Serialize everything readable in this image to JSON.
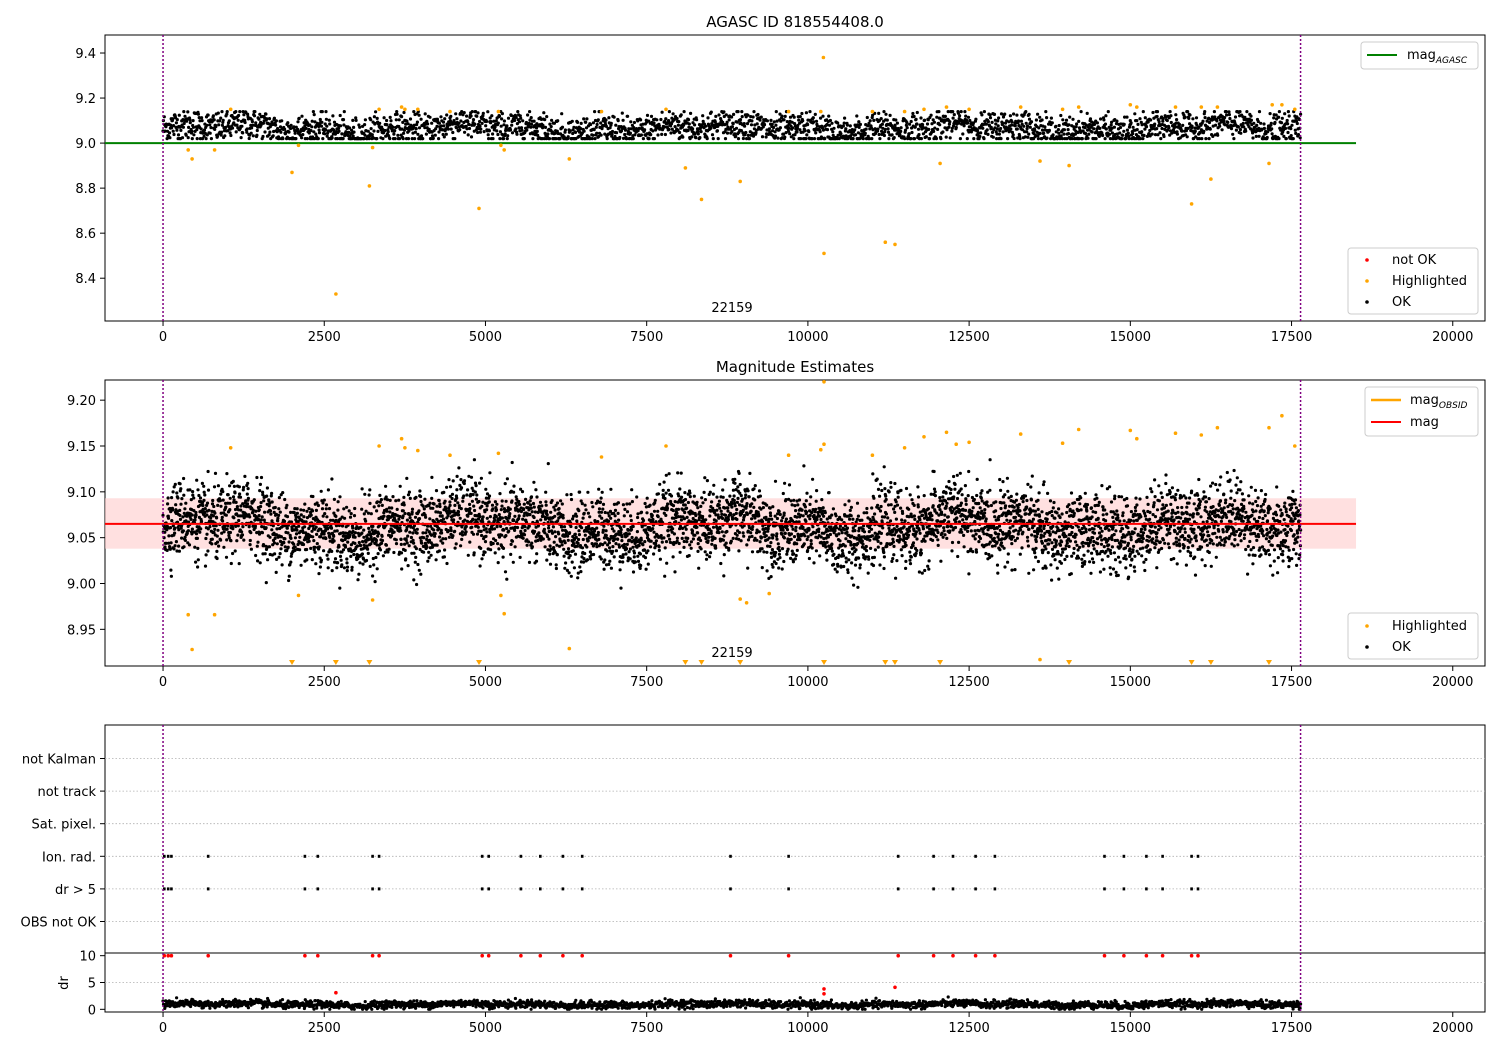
{
  "figure": {
    "colors": {
      "ok": "#000000",
      "highlighted": "#ffa500",
      "not_ok": "#ff0000",
      "agasc": "#008000",
      "mag": "#ff0000",
      "obsid": "#ffa500",
      "band": "#ffcccc",
      "vline": "#800080",
      "grid": "#b0b0b0"
    }
  },
  "chart_data": [
    {
      "type": "scatter",
      "title": "AGASC ID 818554408.0",
      "xlim": [
        -900,
        20500
      ],
      "ylim": [
        8.21,
        9.48
      ],
      "xticks": [
        0,
        2500,
        5000,
        7500,
        10000,
        12500,
        15000,
        17500,
        20000
      ],
      "xtick_labels": [
        "0",
        "2500",
        "5000",
        "7500",
        "10000",
        "12500",
        "15000",
        "17500",
        "20000"
      ],
      "yticks": [
        8.4,
        8.6,
        8.8,
        9.0,
        9.2,
        9.4
      ],
      "ytick_labels": [
        "8.4",
        "8.6",
        "8.8",
        "9.0",
        "9.2",
        "9.4"
      ],
      "vlines": [
        0,
        17640
      ],
      "hline": {
        "y": 9.0,
        "x_range": [
          -900,
          18500
        ]
      },
      "obsid_label": {
        "text": "22159",
        "x": 8800
      },
      "ok_series": {
        "x_range": [
          0,
          17640
        ],
        "center": 9.065,
        "spread": 0.045,
        "count": 2800
      },
      "highlighted_points": [
        [
          390,
          8.97
        ],
        [
          450,
          8.93
        ],
        [
          800,
          8.97
        ],
        [
          2000,
          8.87
        ],
        [
          2100,
          8.99
        ],
        [
          2680,
          8.33
        ],
        [
          3200,
          8.81
        ],
        [
          3250,
          8.98
        ],
        [
          4900,
          8.71
        ],
        [
          5240,
          8.99
        ],
        [
          5290,
          8.97
        ],
        [
          6300,
          8.93
        ],
        [
          8100,
          8.89
        ],
        [
          8350,
          8.75
        ],
        [
          8950,
          8.83
        ],
        [
          10250,
          8.51
        ],
        [
          10240,
          9.38
        ],
        [
          11200,
          8.56
        ],
        [
          11350,
          8.55
        ],
        [
          12050,
          8.91
        ],
        [
          13600,
          8.92
        ],
        [
          14050,
          8.9
        ],
        [
          15950,
          8.73
        ],
        [
          16250,
          8.84
        ],
        [
          17150,
          8.91
        ],
        [
          1050,
          9.15
        ],
        [
          3350,
          9.15
        ],
        [
          3700,
          9.16
        ],
        [
          3750,
          9.15
        ],
        [
          3950,
          9.15
        ],
        [
          4450,
          9.14
        ],
        [
          5200,
          9.14
        ],
        [
          6800,
          9.14
        ],
        [
          7800,
          9.15
        ],
        [
          9700,
          9.14
        ],
        [
          10200,
          9.14
        ],
        [
          11000,
          9.14
        ],
        [
          11500,
          9.14
        ],
        [
          11800,
          9.15
        ],
        [
          12150,
          9.16
        ],
        [
          12500,
          9.15
        ],
        [
          13300,
          9.16
        ],
        [
          13950,
          9.15
        ],
        [
          14200,
          9.16
        ],
        [
          15000,
          9.17
        ],
        [
          15100,
          9.16
        ],
        [
          15700,
          9.16
        ],
        [
          16100,
          9.16
        ],
        [
          16350,
          9.16
        ],
        [
          17200,
          9.17
        ],
        [
          17350,
          9.17
        ],
        [
          17550,
          9.15
        ]
      ],
      "not_ok_points": [],
      "legend_upper": [
        {
          "label": "mag",
          "sub": "AGASC"
        }
      ],
      "legend_lower": [
        {
          "label": "not OK"
        },
        {
          "label": "Highlighted"
        },
        {
          "label": "OK"
        }
      ],
      "legend_upper_position": "upper right",
      "legend_lower_position": "lower right"
    },
    {
      "type": "scatter",
      "title": "Magnitude Estimates",
      "xlim": [
        -900,
        20500
      ],
      "ylim": [
        8.91,
        9.222
      ],
      "xticks": [
        0,
        2500,
        5000,
        7500,
        10000,
        12500,
        15000,
        17500,
        20000
      ],
      "xtick_labels": [
        "0",
        "2500",
        "5000",
        "7500",
        "10000",
        "12500",
        "15000",
        "17500",
        "20000"
      ],
      "yticks": [
        8.95,
        9.0,
        9.05,
        9.1,
        9.15,
        9.2
      ],
      "ytick_labels": [
        "8.95",
        "9.00",
        "9.05",
        "9.10",
        "9.15",
        "9.20"
      ],
      "vlines": [
        0,
        17640
      ],
      "mag_line": {
        "y": 9.065,
        "x_range": [
          -900,
          18500
        ]
      },
      "band": {
        "y_low": 9.038,
        "y_high": 9.093,
        "x_range": [
          -900,
          18500
        ]
      },
      "obsid_label": {
        "text": "22159",
        "x": 8800
      },
      "ok_series": {
        "x_range": [
          0,
          17640
        ],
        "center": 9.062,
        "spread": 0.025,
        "count": 5200
      },
      "highlighted_points": [
        [
          390,
          8.966
        ],
        [
          450,
          8.928
        ],
        [
          800,
          8.966
        ],
        [
          2100,
          8.987
        ],
        [
          3250,
          8.982
        ],
        [
          5240,
          8.987
        ],
        [
          5290,
          8.967
        ],
        [
          6300,
          8.929
        ],
        [
          8950,
          8.983
        ],
        [
          9050,
          8.979
        ],
        [
          9400,
          8.989
        ],
        [
          13600,
          8.917
        ],
        [
          1050,
          9.148
        ],
        [
          3350,
          9.15
        ],
        [
          3700,
          9.158
        ],
        [
          3750,
          9.148
        ],
        [
          3950,
          9.145
        ],
        [
          4450,
          9.14
        ],
        [
          5200,
          9.142
        ],
        [
          6800,
          9.138
        ],
        [
          7800,
          9.15
        ],
        [
          9700,
          9.14
        ],
        [
          10200,
          9.146
        ],
        [
          10250,
          9.152
        ],
        [
          11000,
          9.14
        ],
        [
          11500,
          9.148
        ],
        [
          11800,
          9.16
        ],
        [
          12150,
          9.165
        ],
        [
          12300,
          9.152
        ],
        [
          12500,
          9.154
        ],
        [
          13300,
          9.163
        ],
        [
          13950,
          9.153
        ],
        [
          14200,
          9.168
        ],
        [
          15000,
          9.167
        ],
        [
          15100,
          9.158
        ],
        [
          15700,
          9.164
        ],
        [
          16100,
          9.162
        ],
        [
          16350,
          9.17
        ],
        [
          17150,
          9.17
        ],
        [
          17350,
          9.183
        ],
        [
          17550,
          9.15
        ],
        [
          10250,
          9.22
        ]
      ],
      "lower_markers_x": [
        2000,
        2680,
        3200,
        4900,
        8100,
        8350,
        8950,
        10250,
        11200,
        11350,
        12050,
        14050,
        15950,
        16250,
        17150
      ],
      "legend_upper": [
        {
          "label": "mag",
          "sub": "OBSID"
        },
        {
          "label": "mag"
        }
      ],
      "legend_lower": [
        {
          "label": "Highlighted"
        },
        {
          "label": "OK"
        }
      ],
      "legend_upper_position": "upper right",
      "legend_lower_position": "lower right"
    },
    {
      "type": "scatter",
      "title": "",
      "xlim": [
        -900,
        20500
      ],
      "xticks": [
        0,
        2500,
        5000,
        7500,
        10000,
        12500,
        15000,
        17500,
        20000
      ],
      "xtick_labels": [
        "0",
        "2500",
        "5000",
        "7500",
        "10000",
        "12500",
        "15000",
        "17500",
        "20000"
      ],
      "vlines": [
        0,
        17640
      ],
      "flag_rows": [
        "not Kalman",
        "not track",
        "Sat. pixel.",
        "Ion. rad.",
        "dr > 5",
        "OBS not OK"
      ],
      "flag_x": [
        20,
        80,
        130,
        700,
        2200,
        2400,
        3250,
        3350,
        4950,
        5050,
        5550,
        5850,
        6200,
        6500,
        8800,
        9700,
        11400,
        11950,
        12250,
        12600,
        12900,
        14600,
        14900,
        15250,
        15500,
        15950,
        16050
      ],
      "flagged_rows": [
        "Ion. rad.",
        "dr > 5"
      ]
    },
    {
      "type": "scatter",
      "title": "",
      "ylabel": "dr",
      "xlim": [
        -900,
        20500
      ],
      "ylim": [
        -0.5,
        10.5
      ],
      "yticks": [
        0,
        5,
        10
      ],
      "ytick_labels": [
        "0",
        "5",
        "10"
      ],
      "xticks": [
        0,
        2500,
        5000,
        7500,
        10000,
        12500,
        15000,
        17500,
        20000
      ],
      "xtick_labels": [
        "0",
        "2500",
        "5000",
        "7500",
        "10000",
        "12500",
        "15000",
        "17500",
        "20000"
      ],
      "vlines": [
        0,
        17640
      ],
      "ok_series": {
        "x_range": [
          0,
          17640
        ],
        "center": 0.9,
        "spread": 0.45,
        "count": 2600
      },
      "red_points": [
        [
          20,
          10
        ],
        [
          80,
          10
        ],
        [
          130,
          10
        ],
        [
          700,
          10
        ],
        [
          2200,
          10
        ],
        [
          2400,
          10
        ],
        [
          3250,
          10
        ],
        [
          3350,
          10
        ],
        [
          4950,
          10
        ],
        [
          5050,
          10
        ],
        [
          5550,
          10
        ],
        [
          5850,
          10
        ],
        [
          6200,
          10
        ],
        [
          6500,
          10
        ],
        [
          8800,
          10
        ],
        [
          9700,
          10
        ],
        [
          11400,
          10
        ],
        [
          11950,
          10
        ],
        [
          12250,
          10
        ],
        [
          12600,
          10
        ],
        [
          12900,
          10
        ],
        [
          14600,
          10
        ],
        [
          14900,
          10
        ],
        [
          15250,
          10
        ],
        [
          15500,
          10
        ],
        [
          15950,
          10
        ],
        [
          16050,
          10
        ],
        [
          2680,
          3.1
        ],
        [
          10250,
          3.8
        ],
        [
          10250,
          2.9
        ],
        [
          11350,
          4.1
        ]
      ]
    }
  ]
}
